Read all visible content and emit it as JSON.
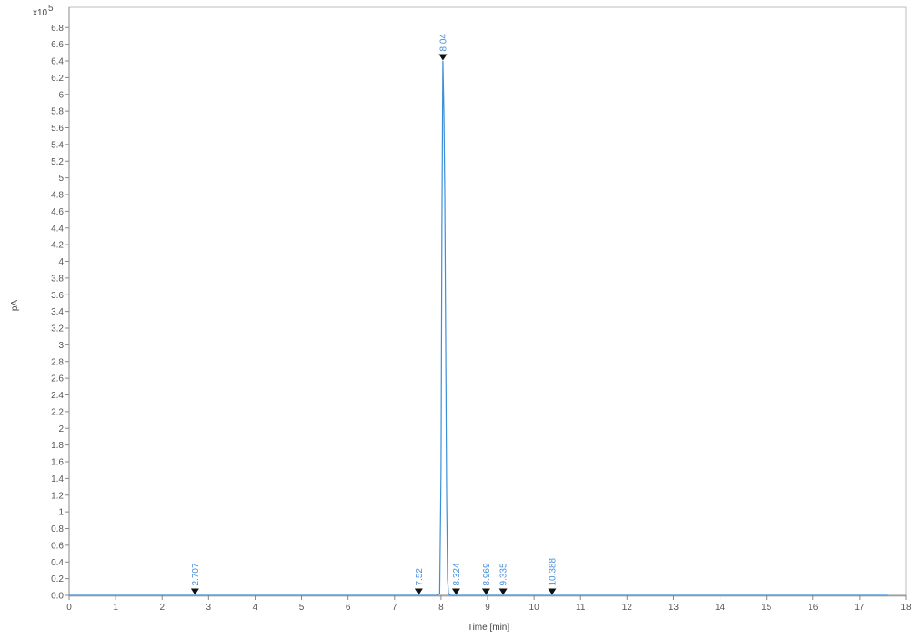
{
  "chart_data": {
    "type": "line",
    "xlabel": "Time [min]",
    "ylabel": "pA",
    "y_multiplier": "x10",
    "y_exponent": "5",
    "xlim": [
      0,
      18
    ],
    "ylim": [
      0,
      7.0
    ],
    "x_ticks": [
      "0",
      "1",
      "2",
      "3",
      "4",
      "5",
      "6",
      "7",
      "8",
      "9",
      "10",
      "11",
      "12",
      "13",
      "14",
      "15",
      "16",
      "17",
      "18"
    ],
    "y_ticks": [
      "0.0",
      "0.2",
      "0.4",
      "0.6",
      "0.8",
      "1",
      "1.2",
      "1.4",
      "1.6",
      "1.8",
      "2",
      "2.2",
      "2.4",
      "2.6",
      "2.8",
      "3",
      "3.2",
      "3.4",
      "3.6",
      "3.8",
      "4",
      "4.2",
      "4.4",
      "4.6",
      "4.8",
      "5",
      "5.2",
      "5.4",
      "5.6",
      "5.8",
      "6",
      "6.2",
      "6.4",
      "6.6",
      "6.8"
    ],
    "grid": false,
    "line_color": "#3a8fd9",
    "series": [
      {
        "x": [
          0,
          7.9,
          7.97,
          8.0,
          8.02,
          8.04,
          8.06,
          8.08,
          8.1,
          8.12,
          8.14,
          8.16,
          8.2,
          8.3,
          17.6
        ],
        "y": [
          0,
          0,
          0.02,
          1.5,
          4.5,
          6.4,
          5.8,
          4.8,
          3.0,
          1.2,
          0.2,
          0.02,
          0,
          0,
          0
        ]
      }
    ],
    "peaks": [
      {
        "label": "2.707",
        "x": 2.707,
        "y": 0.0
      },
      {
        "label": "7.52",
        "x": 7.52,
        "y": 0.0
      },
      {
        "label": "8.04",
        "x": 8.04,
        "y": 6.4
      },
      {
        "label": "8.324",
        "x": 8.324,
        "y": 0.0
      },
      {
        "label": "8.969",
        "x": 8.969,
        "y": 0.0
      },
      {
        "label": "9.335",
        "x": 9.335,
        "y": 0.0
      },
      {
        "label": "10.388",
        "x": 10.388,
        "y": 0.0
      }
    ]
  }
}
